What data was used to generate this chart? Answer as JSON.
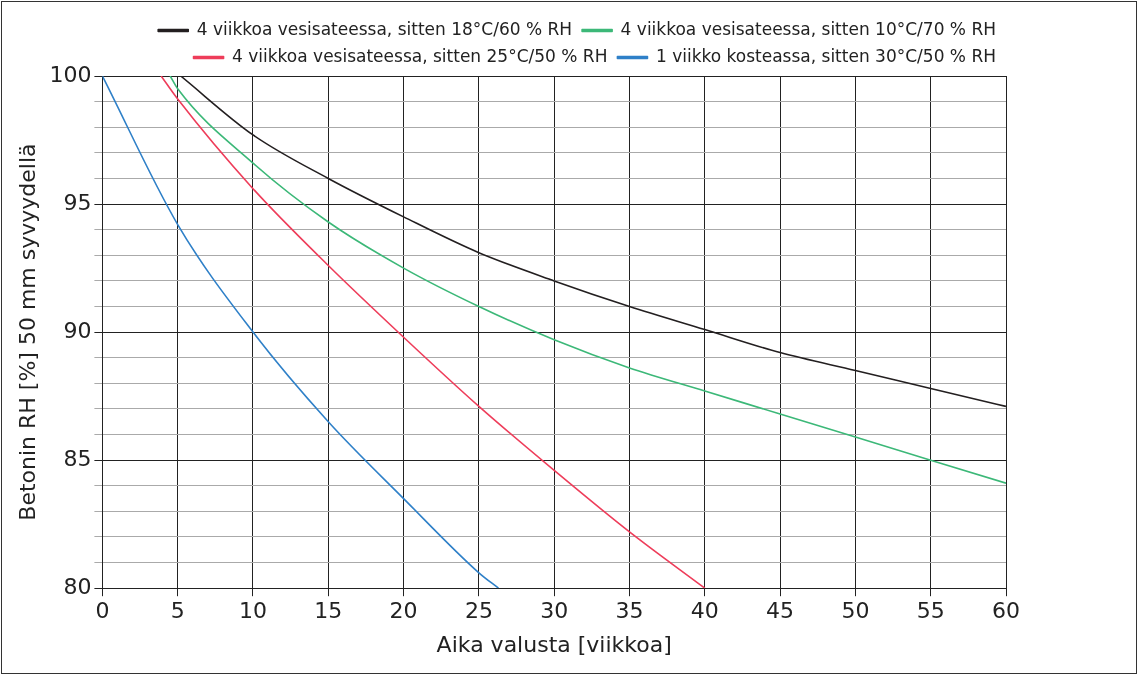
{
  "chart_data": {
    "type": "line",
    "xlabel": "Aika valusta [viikkoa]",
    "ylabel": "Betonin RH [%] 50 mm syvyydellä",
    "xlim": [
      0,
      60
    ],
    "xticks": [
      0,
      5,
      10,
      15,
      20,
      25,
      30,
      35,
      40,
      45,
      50,
      55,
      60
    ],
    "ylim": [
      80,
      100
    ],
    "yticks": [
      80,
      {
        "value": 81,
        "label": null
      },
      {
        "value": 82,
        "label": null
      },
      {
        "value": 83,
        "label": null
      },
      {
        "value": 84,
        "label": null
      },
      85,
      {
        "value": 86,
        "label": null
      },
      {
        "value": 87,
        "label": null
      },
      {
        "value": 88,
        "label": null
      },
      {
        "value": 89,
        "label": null
      },
      90,
      {
        "value": 91,
        "label": null
      },
      {
        "value": 92,
        "label": null
      },
      {
        "value": 93,
        "label": null
      },
      {
        "value": 94,
        "label": null
      },
      95,
      {
        "value": 96,
        "label": null
      },
      {
        "value": 97,
        "label": null
      },
      {
        "value": 98,
        "label": null
      },
      {
        "value": 99,
        "label": null
      },
      100
    ],
    "grid": true,
    "legend": "top right",
    "marker": "none",
    "line_style": "solid",
    "series": [
      {
        "name": "4 viikkoa vesisateessa, sitten 18°C/60 % RH",
        "color": "#231f20",
        "x": [
          5.2,
          10,
          15,
          20,
          25,
          30,
          35,
          40,
          45,
          50,
          55,
          60
        ],
        "values": [
          100,
          97.7,
          96.0,
          94.5,
          93.1,
          92.0,
          91.0,
          90.1,
          89.2,
          88.5,
          87.8,
          87.1
        ]
      },
      {
        "name": "4 viikkoa vesisateessa, sitten 10°C/70 % RH",
        "color": "#3cb878",
        "x": [
          4.5,
          5,
          10,
          15,
          20,
          25,
          30,
          35,
          40,
          45,
          50,
          55,
          60
        ],
        "values": [
          100,
          99.5,
          96.6,
          94.3,
          92.5,
          91.0,
          89.7,
          88.6,
          87.7,
          86.8,
          85.9,
          85.0,
          84.1
        ]
      },
      {
        "name": "4 viikkoa vesisateessa, sitten 25°C/50 % RH",
        "color": "#ee3d5a",
        "x": [
          3.9,
          5,
          10,
          15,
          20,
          25,
          30,
          35,
          40
        ],
        "values": [
          100,
          99.1,
          95.6,
          92.6,
          89.8,
          87.1,
          84.6,
          82.2,
          80.0
        ]
      },
      {
        "name": "1 viikko kosteassa, sitten 30°C/50 % RH",
        "color": "#2f80c8",
        "x": [
          0,
          5,
          10,
          15,
          20,
          25,
          26.3
        ],
        "values": [
          100,
          94.2,
          90.0,
          86.5,
          83.5,
          80.6,
          80
        ]
      }
    ]
  }
}
